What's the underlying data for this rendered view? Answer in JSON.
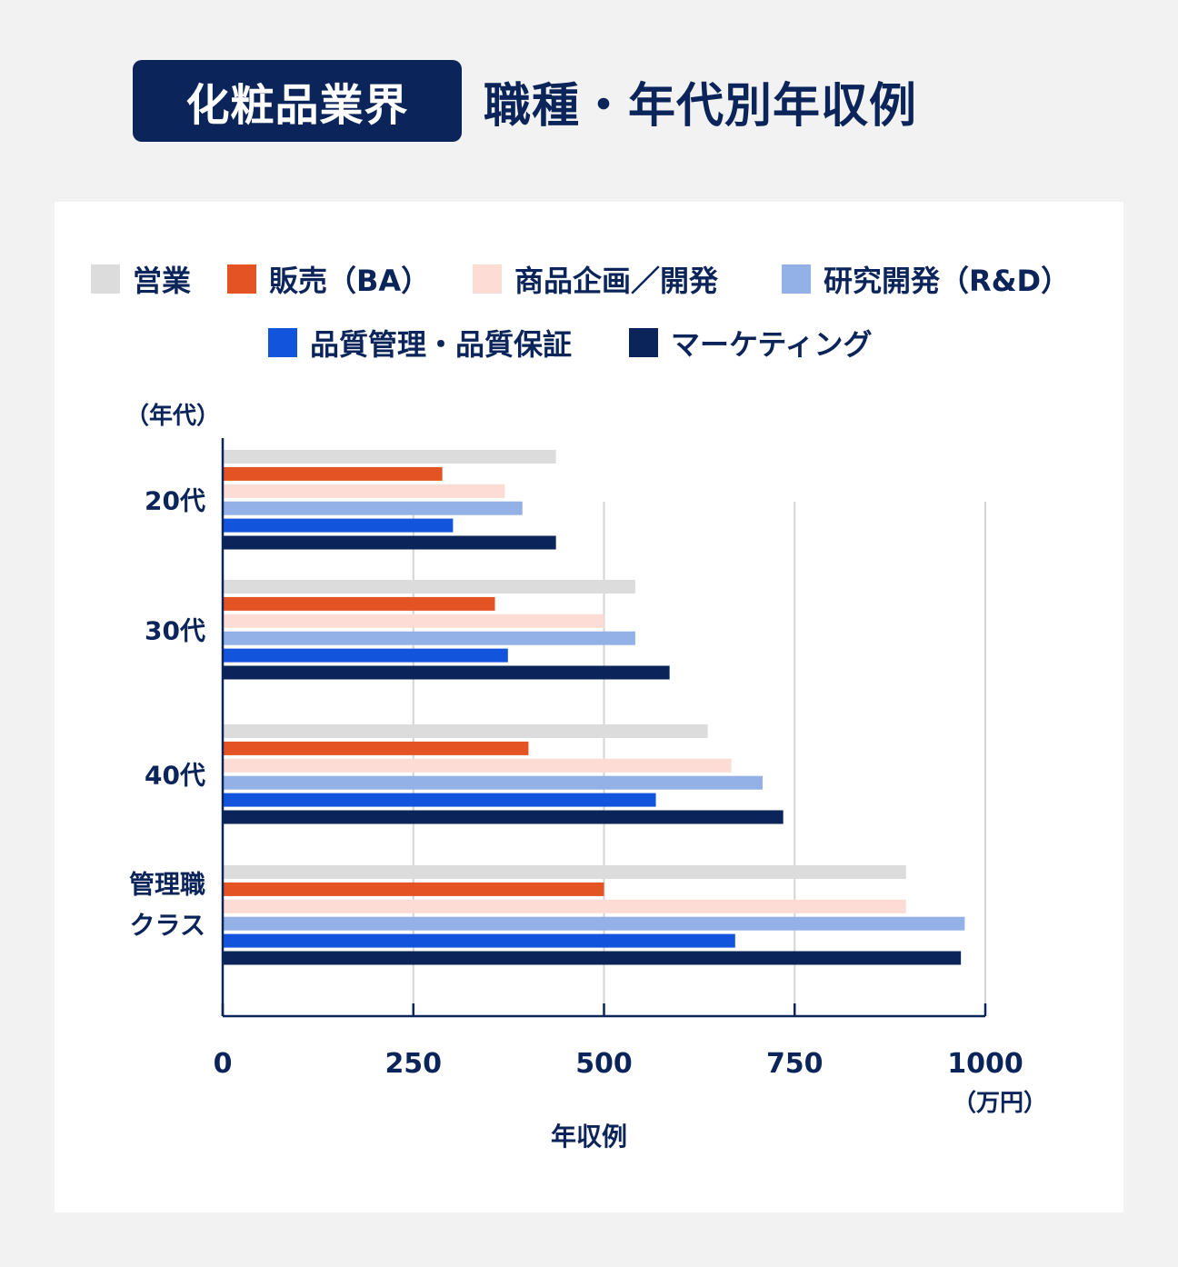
{
  "header": {
    "badge": "化粧品業界",
    "title": "職種・年代別年収例"
  },
  "chart_data": {
    "type": "bar",
    "orientation": "horizontal",
    "categories": [
      "20代",
      "30代",
      "40代",
      "管理職クラス"
    ],
    "category_labels": [
      [
        "20代"
      ],
      [
        "30代"
      ],
      [
        "40代"
      ],
      [
        "管理職",
        "クラス"
      ]
    ],
    "series": [
      {
        "name": "営業",
        "color": "#dcdcdc",
        "values": [
          437,
          541,
          636,
          896
        ]
      },
      {
        "name": "販売（BA）",
        "color": "#e45324",
        "values": [
          288,
          357,
          401,
          500
        ]
      },
      {
        "name": "商品企画／開発",
        "color": "#fcdcd4",
        "values": [
          370,
          500,
          667,
          896
        ]
      },
      {
        "name": "研究開発（R&D）",
        "color": "#93b1e6",
        "values": [
          393,
          541,
          708,
          973
        ]
      },
      {
        "name": "品質管理・品質保証",
        "color": "#1255dc",
        "values": [
          302,
          374,
          568,
          672
        ]
      },
      {
        "name": "マーケティング",
        "color": "#0b2459",
        "values": [
          437,
          586,
          735,
          968
        ]
      }
    ],
    "xlim": [
      0,
      1000
    ],
    "xticks": [
      "0",
      "250",
      "500",
      "750",
      "1000"
    ],
    "xticks_values": [
      0,
      250,
      500,
      750,
      1000
    ],
    "xlabel": "年収例",
    "x_unit": "（万円）",
    "y_axis_caption": "（年代）",
    "grid": "vertical",
    "legend": "top"
  }
}
